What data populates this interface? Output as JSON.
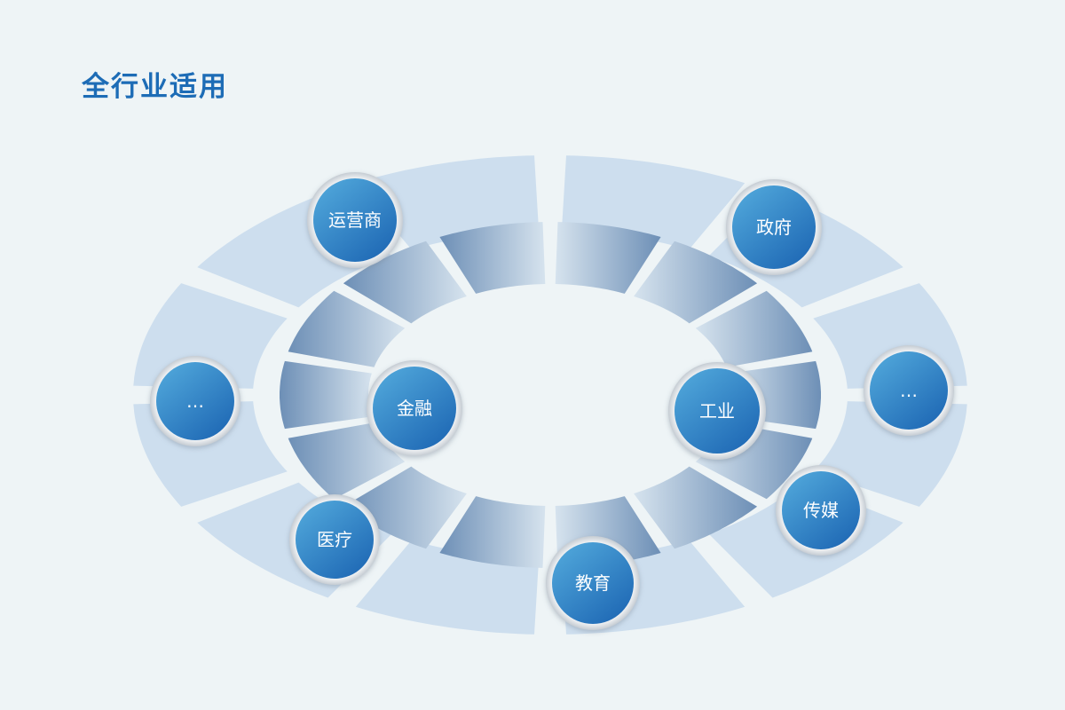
{
  "title": "全行业适用",
  "nodes": {
    "operator": "运营商",
    "government": "政府",
    "more_left": "…",
    "more_right": "…",
    "finance": "金融",
    "industry": "工业",
    "medical": "医疗",
    "education": "教育",
    "media": "传媒"
  },
  "colors": {
    "title": "#1d6cb6",
    "outer_ring": "#c9dced",
    "inner_ring_dark": "#6d8fb6",
    "inner_ring_light": "#d6e3ee",
    "node_dark": "#1f69b5",
    "node_light": "#4da3d8",
    "background": "#eef4f6"
  }
}
